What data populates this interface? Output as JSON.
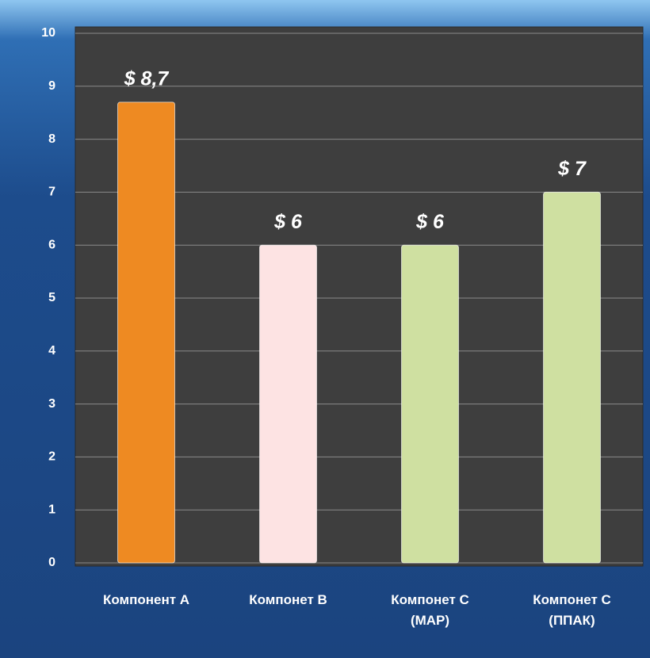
{
  "chart_data": {
    "type": "bar",
    "categories": [
      "Компонент А",
      "Компонет В",
      "Компонет С\n(МАР)",
      "Компонет С\n(ППАК)"
    ],
    "values": [
      8.7,
      6,
      6,
      7
    ],
    "value_labels": [
      "$ 8,7",
      "$ 6",
      "$ 6",
      "$ 7"
    ],
    "colors": [
      "#ee8a22",
      "#fde3e3",
      "#cfe0a1",
      "#cfe0a1"
    ],
    "ylim": [
      0,
      10
    ],
    "yticks": [
      0,
      1,
      2,
      3,
      4,
      5,
      6,
      7,
      8,
      9,
      10
    ],
    "grid": true
  }
}
